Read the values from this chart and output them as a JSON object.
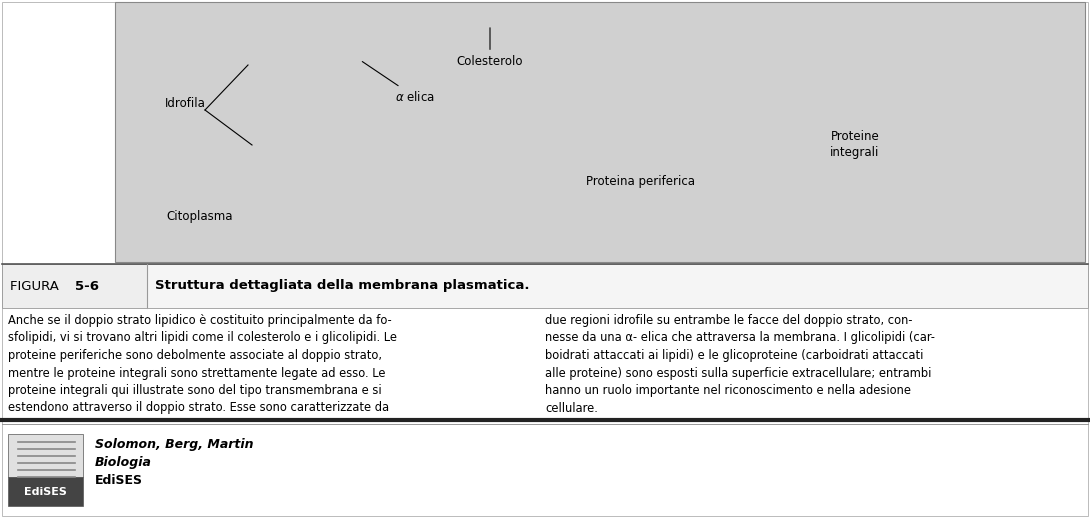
{
  "bg_color": "#ffffff",
  "figure_bg": "#d0d0d0",
  "caption_label_normal": "FIGURA ",
  "caption_label_bold": "5-6",
  "caption_title": "Struttura dettagliata della membrana plasmatica.",
  "body_left": "Anche se il doppio strato lipidico è costituito principalmente da fo-\nsfolipidi, vi si trovano altri lipidi come il colesterolo e i glicolipidi. Le\nproteine periferiche sono debolmente associate al doppio strato,\nmentre le proteine integrali sono strettamente legate ad esso. Le\nproteine integrali qui illustrate sono del tipo transmembrana e si\nestendono attraverso il doppio strato. Esse sono caratterizzate da",
  "body_right": "due regioni idrofile su entrambe le facce del doppio strato, con-\nnesse da una α- elica che attraversa la membrana. I glicolipidi (car-\nboidrati attaccati ai lipidi) e le glicoproteine (carboidrati attaccati\nalle proteine) sono esposti sulla superficie extracellulare; entrambi\nhanno un ruolo importante nel riconoscimento e nella adesione\ncellulare.",
  "publisher_line1": "Solomon, Berg, Martin",
  "publisher_line2": "Biologia",
  "publisher_line3": "EdiSES",
  "font_size_body": 8.3,
  "font_size_caption_label": 9.5,
  "font_size_caption_title": 9.5,
  "font_size_labels": 8.5,
  "font_size_publisher": 9.0
}
